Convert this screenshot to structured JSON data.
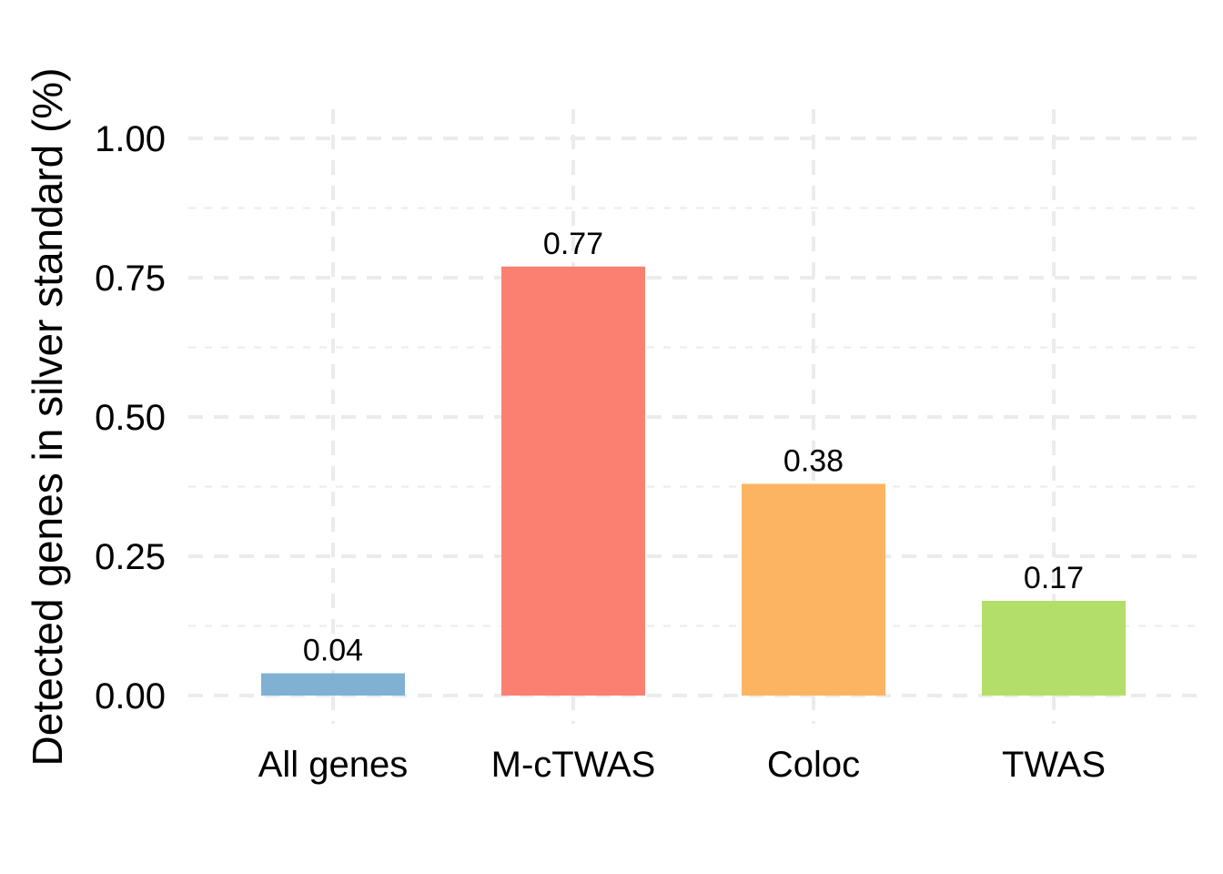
{
  "chart_data": {
    "type": "bar",
    "categories": [
      "All genes",
      "M-cTWAS",
      "Coloc",
      "TWAS"
    ],
    "values": [
      0.04,
      0.77,
      0.38,
      0.17
    ],
    "data_labels": [
      "0.04",
      "0.77",
      "0.38",
      "0.17"
    ],
    "colors": [
      "#80B1D3",
      "#FB8072",
      "#FDB462",
      "#B3DE69"
    ],
    "xlabel": "",
    "ylabel": "Detected genes in silver standard (%)",
    "ylim": [
      0,
      1
    ],
    "yticks": [
      0,
      0.25,
      0.5,
      0.75,
      1
    ],
    "ytick_labels": [
      "0.00",
      "0.25",
      "0.50",
      "0.75",
      "1.00"
    ],
    "grid": true,
    "legend": "none",
    "grid_color": "#EBEBEB"
  }
}
